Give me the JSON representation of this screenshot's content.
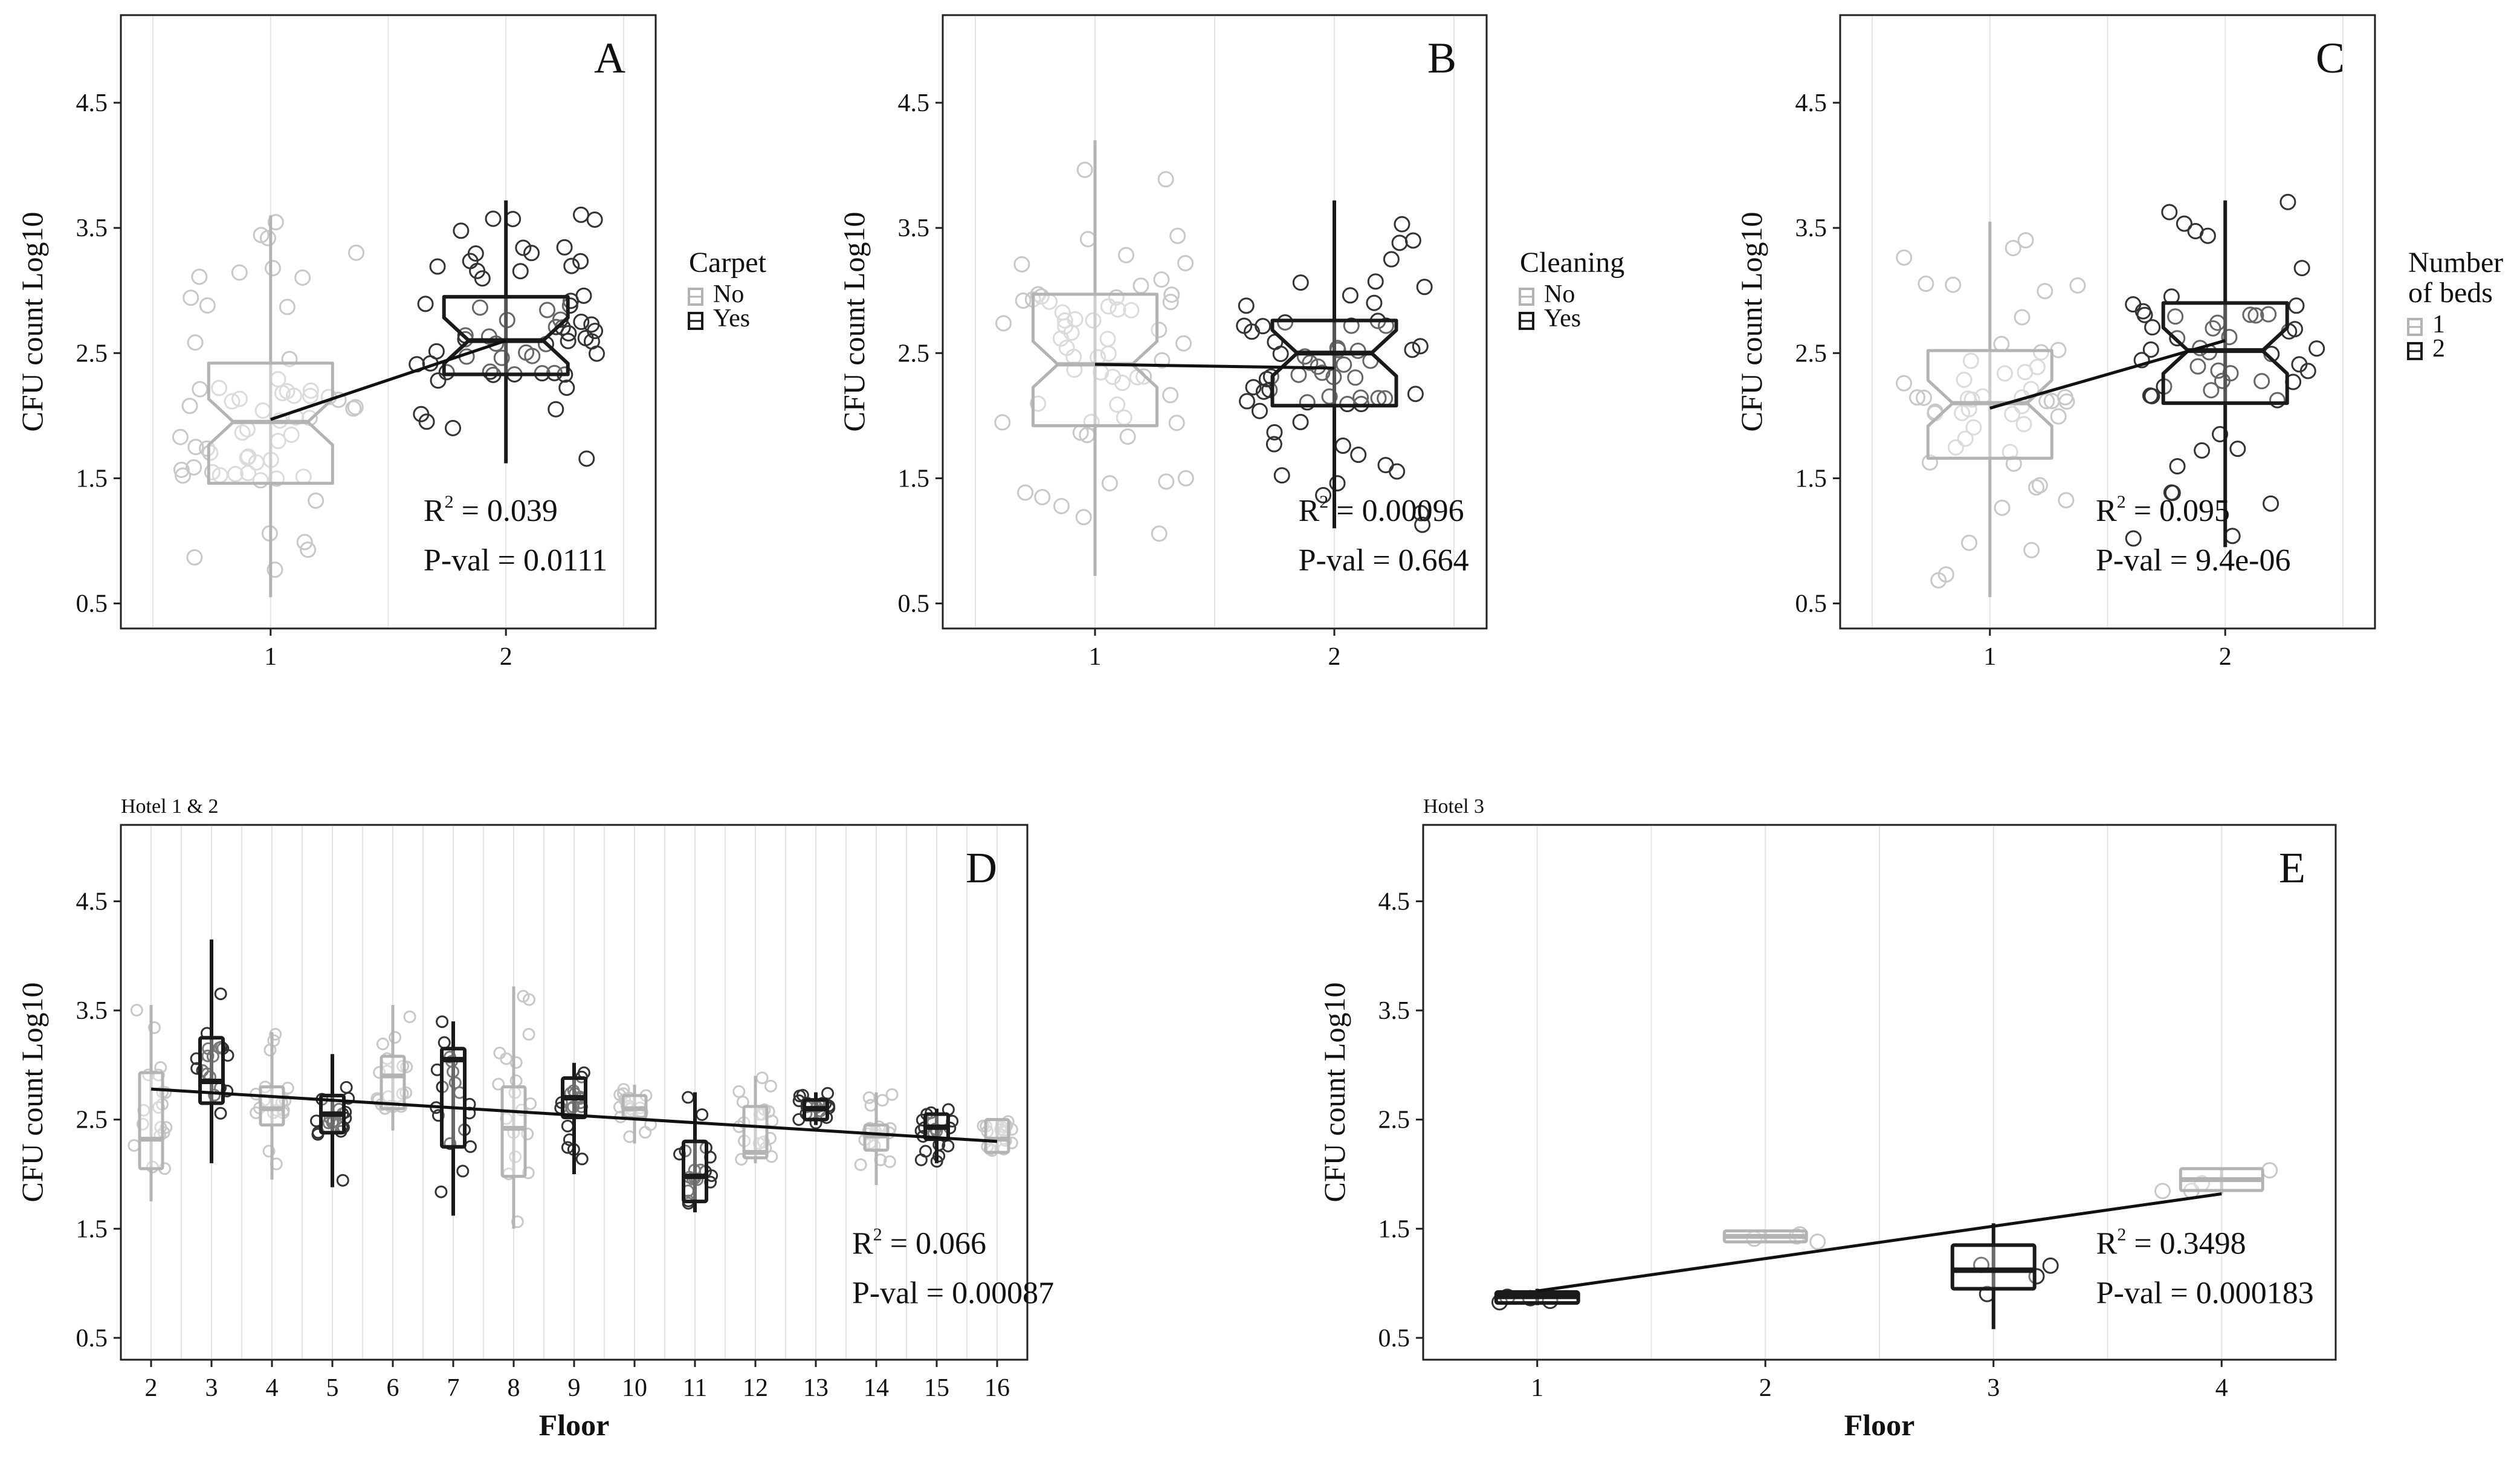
{
  "figure": {
    "panels": [
      {
        "id": "A",
        "letter": "A",
        "subtitle": "",
        "ylabel": "CFU count Log10",
        "xlabel": "",
        "ylim": [
          0.3,
          5.2
        ],
        "yticks": [
          "0.5",
          "1.5",
          "2.5",
          "3.5",
          "4.5"
        ],
        "categories": [
          "1",
          "2"
        ],
        "legend": {
          "title_lines": [
            "Carpet"
          ],
          "items": [
            {
              "label": "No",
              "color": "#aaaaaa"
            },
            {
              "label": "Yes",
              "color": "#111111"
            }
          ]
        },
        "stats": {
          "r2_prefix": "R",
          "r2_sup": "2",
          "r2_value": " = 0.039",
          "pval": "P-val = 0.0111"
        },
        "fit_line": [
          [
            1,
            1.97
          ],
          [
            2,
            2.6
          ]
        ]
      },
      {
        "id": "B",
        "letter": "B",
        "subtitle": "",
        "ylabel": "CFU count Log10",
        "xlabel": "",
        "ylim": [
          0.3,
          5.2
        ],
        "yticks": [
          "0.5",
          "1.5",
          "2.5",
          "3.5",
          "4.5"
        ],
        "categories": [
          "1",
          "2"
        ],
        "legend": {
          "title_lines": [
            "Cleaning"
          ],
          "items": [
            {
              "label": "No",
              "color": "#aaaaaa"
            },
            {
              "label": "Yes",
              "color": "#111111"
            }
          ]
        },
        "stats": {
          "r2_prefix": "R",
          "r2_sup": "2",
          "r2_value": " = 0.00096",
          "pval": "P-val = 0.664"
        },
        "fit_line": [
          [
            1,
            2.41
          ],
          [
            2,
            2.38
          ]
        ]
      },
      {
        "id": "C",
        "letter": "C",
        "subtitle": "",
        "ylabel": "CFU count Log10",
        "xlabel": "",
        "ylim": [
          0.3,
          5.2
        ],
        "yticks": [
          "0.5",
          "1.5",
          "2.5",
          "3.5",
          "4.5"
        ],
        "categories": [
          "1",
          "2"
        ],
        "legend": {
          "title_lines": [
            "Number",
            "of beds"
          ],
          "items": [
            {
              "label": "1",
              "color": "#aaaaaa"
            },
            {
              "label": "2",
              "color": "#111111"
            }
          ]
        },
        "stats": {
          "r2_prefix": "R",
          "r2_sup": "2",
          "r2_value": " = 0.095",
          "pval": "P-val = 9.4e-06"
        },
        "fit_line": [
          [
            1,
            2.06
          ],
          [
            2,
            2.6
          ]
        ]
      },
      {
        "id": "D",
        "letter": "D",
        "subtitle": "Hotel 1 & 2",
        "ylabel": "CFU count Log10",
        "xlabel": "Floor",
        "ylim": [
          0.3,
          5.2
        ],
        "yticks": [
          "0.5",
          "1.5",
          "2.5",
          "3.5",
          "4.5"
        ],
        "categories": [
          "2",
          "3",
          "4",
          "5",
          "6",
          "7",
          "8",
          "9",
          "10",
          "11",
          "12",
          "13",
          "14",
          "15",
          "16"
        ],
        "legend": null,
        "stats": {
          "r2_prefix": "R",
          "r2_sup": "2",
          "r2_value": " = 0.066",
          "pval": "P-val = 0.00087"
        },
        "fit_line": [
          [
            2,
            2.78
          ],
          [
            16,
            2.3
          ]
        ]
      },
      {
        "id": "E",
        "letter": "E",
        "subtitle": "Hotel 3",
        "ylabel": "CFU count Log10",
        "xlabel": "Floor",
        "ylim": [
          0.3,
          5.2
        ],
        "yticks": [
          "0.5",
          "1.5",
          "2.5",
          "3.5",
          "4.5"
        ],
        "categories": [
          "1",
          "2",
          "3",
          "4"
        ],
        "legend": null,
        "stats": {
          "r2_prefix": "R",
          "r2_sup": "2",
          "r2_value": " = 0.3498",
          "pval": "P-val = 0.000183"
        },
        "fit_line": [
          [
            1,
            0.93
          ],
          [
            4,
            1.82
          ]
        ]
      }
    ]
  },
  "chart_data": [
    {
      "panel": "A",
      "type": "box",
      "ylabel": "CFU count Log10",
      "xlabel": "",
      "ylim": [
        0.3,
        5.2
      ],
      "categories": [
        "1",
        "2"
      ],
      "legend_title": "Carpet",
      "legend": [
        "No",
        "Yes"
      ],
      "grid": true,
      "notched": true,
      "boxes": [
        {
          "x": "1",
          "group": "No",
          "color": "#aaaaaa",
          "min": 0.55,
          "q1": 1.46,
          "median": 1.95,
          "q3": 2.42,
          "max": 3.6
        },
        {
          "x": "2",
          "group": "Yes",
          "color": "#111111",
          "min": 1.62,
          "q1": 2.33,
          "median": 2.6,
          "q3": 2.95,
          "max": 3.72
        }
      ],
      "regression": {
        "r_squared": 0.039,
        "p_value": 0.0111
      }
    },
    {
      "panel": "B",
      "type": "box",
      "ylabel": "CFU count Log10",
      "xlabel": "",
      "ylim": [
        0.3,
        5.2
      ],
      "categories": [
        "1",
        "2"
      ],
      "legend_title": "Cleaning",
      "legend": [
        "No",
        "Yes"
      ],
      "grid": true,
      "notched": true,
      "boxes": [
        {
          "x": "1",
          "group": "No",
          "color": "#aaaaaa",
          "min": 0.72,
          "q1": 1.92,
          "median": 2.41,
          "q3": 2.97,
          "max": 4.2
        },
        {
          "x": "2",
          "group": "Yes",
          "color": "#111111",
          "min": 1.1,
          "q1": 2.08,
          "median": 2.5,
          "q3": 2.76,
          "max": 3.72
        }
      ],
      "regression": {
        "r_squared": 0.00096,
        "p_value": 0.664
      }
    },
    {
      "panel": "C",
      "type": "box",
      "ylabel": "CFU count Log10",
      "xlabel": "",
      "ylim": [
        0.3,
        5.2
      ],
      "categories": [
        "1",
        "2"
      ],
      "legend_title": "Number of beds",
      "legend": [
        "1",
        "2"
      ],
      "grid": true,
      "notched": true,
      "boxes": [
        {
          "x": "1",
          "group": "1",
          "color": "#aaaaaa",
          "min": 0.55,
          "q1": 1.66,
          "median": 2.1,
          "q3": 2.52,
          "max": 3.55
        },
        {
          "x": "2",
          "group": "2",
          "color": "#111111",
          "min": 0.95,
          "q1": 2.1,
          "median": 2.52,
          "q3": 2.9,
          "max": 3.72
        }
      ],
      "regression": {
        "r_squared": 0.095,
        "p_value": 9.4e-06
      }
    },
    {
      "panel": "D",
      "title": "Hotel 1 & 2",
      "type": "box",
      "ylabel": "CFU count Log10",
      "xlabel": "Floor",
      "ylim": [
        0.3,
        5.2
      ],
      "categories": [
        "2",
        "3",
        "4",
        "5",
        "6",
        "7",
        "8",
        "9",
        "10",
        "11",
        "12",
        "13",
        "14",
        "15",
        "16"
      ],
      "grid": true,
      "boxes": [
        {
          "x": "2",
          "color": "#aaaaaa",
          "min": 1.75,
          "q1": 2.05,
          "median": 2.32,
          "q3": 2.93,
          "max": 3.55
        },
        {
          "x": "3",
          "color": "#111111",
          "min": 2.1,
          "q1": 2.65,
          "median": 2.85,
          "q3": 3.25,
          "max": 4.15
        },
        {
          "x": "4",
          "color": "#aaaaaa",
          "min": 1.95,
          "q1": 2.45,
          "median": 2.6,
          "q3": 2.8,
          "max": 3.3
        },
        {
          "x": "5",
          "color": "#111111",
          "min": 1.88,
          "q1": 2.38,
          "median": 2.55,
          "q3": 2.72,
          "max": 3.1
        },
        {
          "x": "6",
          "color": "#aaaaaa",
          "min": 2.4,
          "q1": 2.6,
          "median": 2.9,
          "q3": 3.08,
          "max": 3.55
        },
        {
          "x": "7",
          "color": "#111111",
          "min": 1.62,
          "q1": 2.25,
          "median": 3.05,
          "q3": 3.15,
          "max": 3.4
        },
        {
          "x": "8",
          "color": "#aaaaaa",
          "min": 1.5,
          "q1": 1.98,
          "median": 2.42,
          "q3": 2.8,
          "max": 3.72
        },
        {
          "x": "9",
          "color": "#111111",
          "min": 2.0,
          "q1": 2.52,
          "median": 2.7,
          "q3": 2.88,
          "max": 3.02
        },
        {
          "x": "10",
          "color": "#aaaaaa",
          "min": 2.28,
          "q1": 2.52,
          "median": 2.6,
          "q3": 2.72,
          "max": 2.82
        },
        {
          "x": "11",
          "color": "#111111",
          "min": 1.65,
          "q1": 1.75,
          "median": 1.98,
          "q3": 2.3,
          "max": 2.75
        },
        {
          "x": "12",
          "color": "#aaaaaa",
          "min": 2.1,
          "q1": 2.15,
          "median": 2.2,
          "q3": 2.62,
          "max": 2.9
        },
        {
          "x": "13",
          "color": "#111111",
          "min": 2.45,
          "q1": 2.5,
          "median": 2.6,
          "q3": 2.68,
          "max": 2.75
        },
        {
          "x": "14",
          "color": "#aaaaaa",
          "min": 1.9,
          "q1": 2.22,
          "median": 2.35,
          "q3": 2.45,
          "max": 2.75
        },
        {
          "x": "15",
          "color": "#111111",
          "min": 2.1,
          "q1": 2.32,
          "median": 2.43,
          "q3": 2.55,
          "max": 2.6
        },
        {
          "x": "16",
          "color": "#aaaaaa",
          "min": 2.2,
          "q1": 2.2,
          "median": 2.32,
          "q3": 2.5,
          "max": 2.5
        }
      ],
      "regression": {
        "r_squared": 0.066,
        "p_value": 0.00087
      }
    },
    {
      "panel": "E",
      "title": "Hotel 3",
      "type": "box",
      "ylabel": "CFU count Log10",
      "xlabel": "Floor",
      "ylim": [
        0.3,
        5.2
      ],
      "categories": [
        "1",
        "2",
        "3",
        "4"
      ],
      "grid": true,
      "boxes": [
        {
          "x": "1",
          "color": "#111111",
          "min": 0.8,
          "q1": 0.82,
          "median": 0.88,
          "q3": 0.92,
          "max": 0.95
        },
        {
          "x": "2",
          "color": "#aaaaaa",
          "min": 1.38,
          "q1": 1.38,
          "median": 1.43,
          "q3": 1.48,
          "max": 1.48
        },
        {
          "x": "3",
          "color": "#111111",
          "min": 0.58,
          "q1": 0.95,
          "median": 1.12,
          "q3": 1.35,
          "max": 1.55
        },
        {
          "x": "4",
          "color": "#aaaaaa",
          "min": 1.82,
          "q1": 1.85,
          "median": 1.95,
          "q3": 2.05,
          "max": 2.05
        }
      ],
      "regression": {
        "r_squared": 0.3498,
        "p_value": 0.000183
      }
    }
  ]
}
